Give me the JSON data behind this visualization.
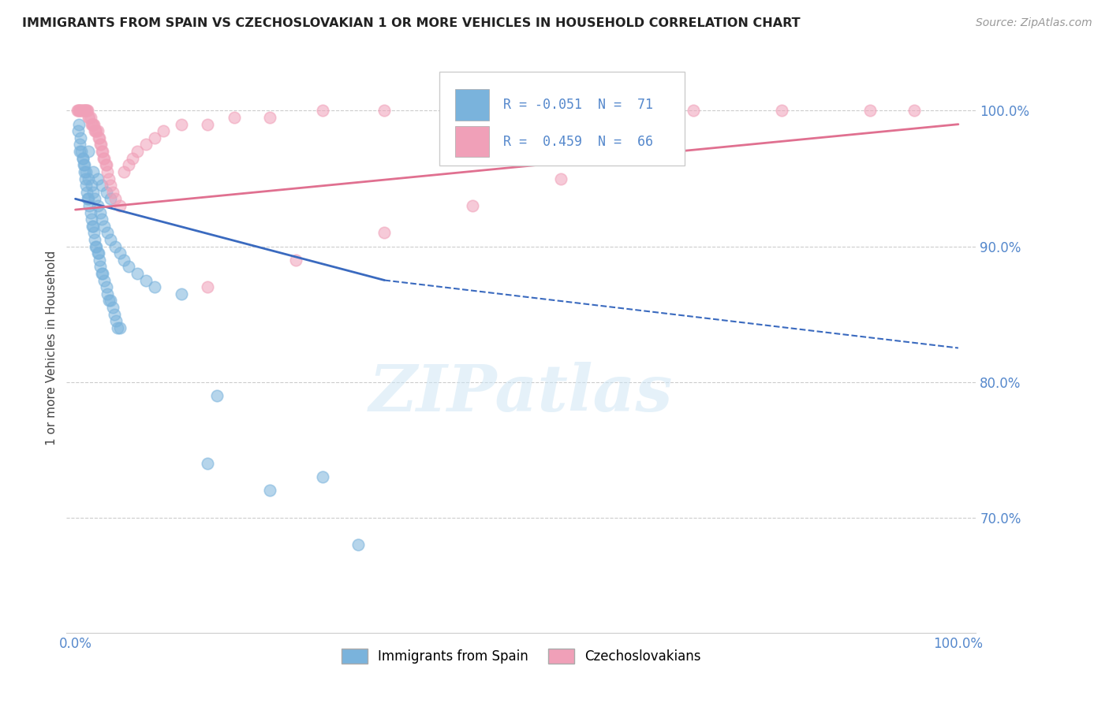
{
  "title": "IMMIGRANTS FROM SPAIN VS CZECHOSLOVAKIAN 1 OR MORE VEHICLES IN HOUSEHOLD CORRELATION CHART",
  "source": "Source: ZipAtlas.com",
  "ylabel": "1 or more Vehicles in Household",
  "xlim": [
    -0.01,
    1.02
  ],
  "ylim": [
    0.615,
    1.035
  ],
  "xtick_positions": [
    0.0,
    1.0
  ],
  "xtick_labels": [
    "0.0%",
    "100.0%"
  ],
  "ytick_positions": [
    0.7,
    0.8,
    0.9,
    1.0
  ],
  "ytick_labels": [
    "70.0%",
    "80.0%",
    "90.0%",
    "100.0%"
  ],
  "color_spain": "#7ab3dc",
  "color_czech": "#f0a0b8",
  "trendline_spain_color": "#3a6abf",
  "trendline_czech_color": "#e07090",
  "watermark_text": "ZIPatlas",
  "background_color": "#ffffff",
  "grid_color": "#cccccc",
  "tick_color": "#5588cc",
  "title_color": "#222222",
  "ylabel_color": "#444444",
  "source_color": "#999999",
  "legend_r1_text": "R = -0.051",
  "legend_n1_text": "N =  71",
  "legend_r2_text": "R =  0.459",
  "legend_n2_text": "N =  66",
  "blue_x": [
    0.003,
    0.004,
    0.005,
    0.006,
    0.007,
    0.008,
    0.009,
    0.01,
    0.011,
    0.012,
    0.013,
    0.014,
    0.015,
    0.016,
    0.017,
    0.018,
    0.019,
    0.02,
    0.021,
    0.022,
    0.023,
    0.024,
    0.025,
    0.026,
    0.027,
    0.028,
    0.03,
    0.031,
    0.033,
    0.035,
    0.036,
    0.038,
    0.04,
    0.042,
    0.044,
    0.046,
    0.048,
    0.05,
    0.015,
    0.02,
    0.025,
    0.03,
    0.035,
    0.04,
    0.005,
    0.008,
    0.01,
    0.012,
    0.015,
    0.018,
    0.02,
    0.022,
    0.025,
    0.028,
    0.03,
    0.033,
    0.036,
    0.04,
    0.045,
    0.05,
    0.055,
    0.06,
    0.07,
    0.08,
    0.09,
    0.12,
    0.16,
    0.22,
    0.28,
    0.15,
    0.32
  ],
  "blue_y": [
    0.985,
    0.99,
    0.975,
    0.98,
    0.97,
    0.965,
    0.96,
    0.955,
    0.95,
    0.945,
    0.94,
    0.935,
    0.935,
    0.93,
    0.925,
    0.92,
    0.915,
    0.915,
    0.91,
    0.905,
    0.9,
    0.9,
    0.895,
    0.895,
    0.89,
    0.885,
    0.88,
    0.88,
    0.875,
    0.87,
    0.865,
    0.86,
    0.86,
    0.855,
    0.85,
    0.845,
    0.84,
    0.84,
    0.97,
    0.955,
    0.95,
    0.945,
    0.94,
    0.935,
    0.97,
    0.965,
    0.96,
    0.955,
    0.95,
    0.945,
    0.94,
    0.935,
    0.93,
    0.925,
    0.92,
    0.915,
    0.91,
    0.905,
    0.9,
    0.895,
    0.89,
    0.885,
    0.88,
    0.875,
    0.87,
    0.865,
    0.79,
    0.72,
    0.73,
    0.74,
    0.68
  ],
  "pink_x": [
    0.002,
    0.003,
    0.004,
    0.005,
    0.006,
    0.007,
    0.008,
    0.009,
    0.01,
    0.011,
    0.012,
    0.013,
    0.014,
    0.015,
    0.016,
    0.017,
    0.018,
    0.019,
    0.02,
    0.021,
    0.022,
    0.023,
    0.024,
    0.025,
    0.026,
    0.027,
    0.028,
    0.029,
    0.03,
    0.031,
    0.032,
    0.033,
    0.034,
    0.035,
    0.036,
    0.038,
    0.04,
    0.042,
    0.045,
    0.05,
    0.055,
    0.06,
    0.065,
    0.07,
    0.08,
    0.09,
    0.1,
    0.12,
    0.15,
    0.18,
    0.22,
    0.28,
    0.35,
    0.42,
    0.5,
    0.6,
    0.7,
    0.8,
    0.9,
    0.95,
    0.15,
    0.25,
    0.35,
    0.45,
    0.55,
    0.65
  ],
  "pink_y": [
    1.0,
    1.0,
    1.0,
    1.0,
    1.0,
    1.0,
    1.0,
    1.0,
    1.0,
    1.0,
    1.0,
    1.0,
    1.0,
    0.995,
    0.995,
    0.995,
    0.99,
    0.99,
    0.99,
    0.99,
    0.985,
    0.985,
    0.985,
    0.985,
    0.98,
    0.98,
    0.975,
    0.975,
    0.97,
    0.97,
    0.965,
    0.965,
    0.96,
    0.96,
    0.955,
    0.95,
    0.945,
    0.94,
    0.935,
    0.93,
    0.955,
    0.96,
    0.965,
    0.97,
    0.975,
    0.98,
    0.985,
    0.99,
    0.99,
    0.995,
    0.995,
    1.0,
    1.0,
    1.0,
    1.0,
    1.0,
    1.0,
    1.0,
    1.0,
    1.0,
    0.87,
    0.89,
    0.91,
    0.93,
    0.95,
    0.97
  ],
  "trendline_blue_x0": 0.0,
  "trendline_blue_y0": 0.935,
  "trendline_blue_x1": 0.35,
  "trendline_blue_y1": 0.875,
  "trendline_blue_dash_x1": 1.0,
  "trendline_blue_dash_y1": 0.825,
  "trendline_pink_x0": 0.0,
  "trendline_pink_y0": 0.927,
  "trendline_pink_x1": 1.0,
  "trendline_pink_y1": 0.99
}
